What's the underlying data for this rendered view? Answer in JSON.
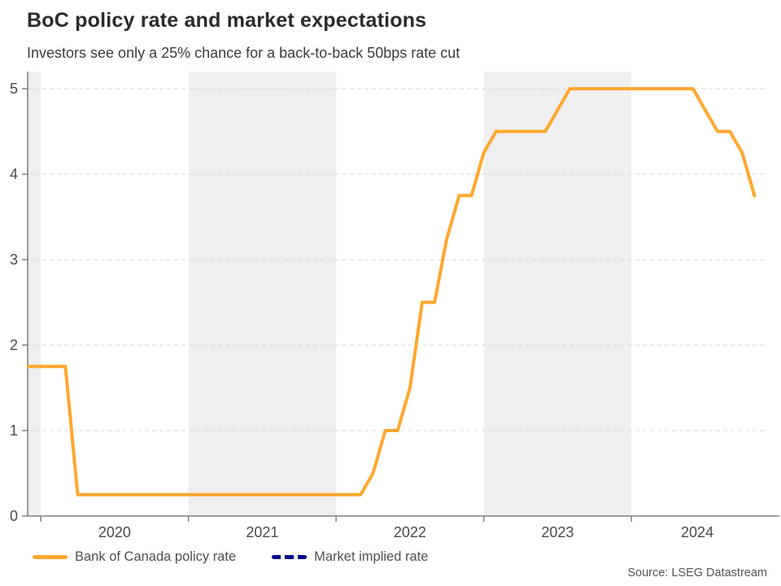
{
  "title": "BoC policy rate and market expectations",
  "subtitle": "Investors see only a 25% chance for a back-to-back 50bps rate cut",
  "source": "Source: LSEG Datastream",
  "legend": {
    "items": [
      {
        "label": "Bank of Canada policy rate",
        "color": "#FFA72E",
        "line_style": "solid"
      },
      {
        "label": "Market implied rate",
        "color": "#00008B",
        "line_style": "dashed"
      }
    ]
  },
  "colors": {
    "policy_rate_line": "#FFA72E",
    "market_implied_line": "#00008B",
    "year_band": "#EFEFEF",
    "gridline": "#D9D9D9",
    "axis": "#808080",
    "tick_label": "#4A4A4A",
    "title_text": "#2B2B2B",
    "subtitle_text": "#3C3C3C",
    "legend_text": "#4F4F4F",
    "source_text": "#555555",
    "background": "#FFFFFF"
  },
  "chart_data": {
    "type": "line",
    "title": "BoC policy rate and market expectations",
    "subtitle": "Investors see only a 25% chance for a back-to-back 50bps rate cut",
    "frequency": "monthly",
    "x_start_month": "2019-12",
    "x_end_month": "2024-11",
    "x_axis_year_ticks": [
      2020,
      2021,
      2022,
      2023,
      2024
    ],
    "y_ticks": [
      0,
      1,
      2,
      3,
      4,
      5
    ],
    "ylim": [
      0,
      5.2
    ],
    "grid": "horizontal-dashed",
    "shaded_year_bands": [
      2019,
      2021,
      2023
    ],
    "legend_position": "bottom-left",
    "series": [
      {
        "name": "Bank of Canada policy rate",
        "color": "#FFA72E",
        "style": "solid",
        "values": [
          1.75,
          1.75,
          1.75,
          1.75,
          0.25,
          0.25,
          0.25,
          0.25,
          0.25,
          0.25,
          0.25,
          0.25,
          0.25,
          0.25,
          0.25,
          0.25,
          0.25,
          0.25,
          0.25,
          0.25,
          0.25,
          0.25,
          0.25,
          0.25,
          0.25,
          0.25,
          0.25,
          0.25,
          0.5,
          1.0,
          1.0,
          1.5,
          2.5,
          2.5,
          3.25,
          3.75,
          3.75,
          4.25,
          4.5,
          4.5,
          4.5,
          4.5,
          4.5,
          4.75,
          5.0,
          5.0,
          5.0,
          5.0,
          5.0,
          5.0,
          5.0,
          5.0,
          5.0,
          5.0,
          5.0,
          4.75,
          4.5,
          4.5,
          4.25,
          3.75
        ]
      },
      {
        "name": "Market implied rate",
        "color": "#00008B",
        "style": "dashed",
        "values": []
      }
    ]
  }
}
